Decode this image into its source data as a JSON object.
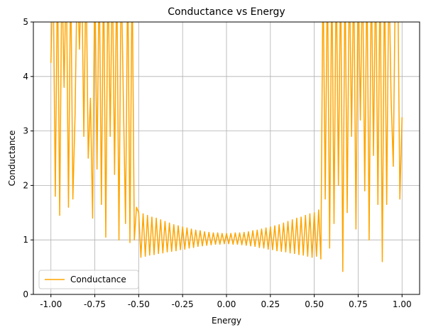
{
  "chart_data": {
    "type": "line",
    "title": "Conductance vs Energy",
    "x_label": "Energy",
    "y_label": "Conductance",
    "x": [
      -1,
      -0.9875,
      -0.975,
      -0.9625,
      -0.95,
      -0.9375,
      -0.925,
      -0.9125,
      -0.9,
      -0.8875,
      -0.875,
      -0.8625,
      -0.85,
      -0.8375,
      -0.825,
      -0.8125,
      -0.8,
      -0.7875,
      -0.775,
      -0.7625,
      -0.75,
      -0.7375,
      -0.725,
      -0.7125,
      -0.7,
      -0.6875,
      -0.675,
      -0.6625,
      -0.65,
      -0.6375,
      -0.625,
      -0.6125,
      -0.6,
      -0.5875,
      -0.575,
      -0.5625,
      -0.55,
      -0.5375,
      -0.525,
      -0.5125,
      -0.5,
      -0.4875,
      -0.475,
      -0.4625,
      -0.45,
      -0.4375,
      -0.425,
      -0.4125,
      -0.4,
      -0.3875,
      -0.375,
      -0.3625,
      -0.35,
      -0.3375,
      -0.325,
      -0.3125,
      -0.3,
      -0.2875,
      -0.275,
      -0.2625,
      -0.25,
      -0.2375,
      -0.225,
      -0.2125,
      -0.2,
      -0.1875,
      -0.175,
      -0.1625,
      -0.15,
      -0.1375,
      -0.125,
      -0.1125,
      -0.1,
      -0.0875,
      -0.075,
      -0.0625,
      -0.05,
      -0.0375,
      -0.025,
      -0.0125,
      0,
      0.0125,
      0.025,
      0.0375,
      0.05,
      0.0625,
      0.075,
      0.0875,
      0.1,
      0.1125,
      0.125,
      0.1375,
      0.15,
      0.1625,
      0.175,
      0.1875,
      0.2,
      0.2125,
      0.225,
      0.2375,
      0.25,
      0.2625,
      0.275,
      0.2875,
      0.3,
      0.3125,
      0.325,
      0.3375,
      0.35,
      0.3625,
      0.375,
      0.3875,
      0.4,
      0.4125,
      0.425,
      0.4375,
      0.45,
      0.4625,
      0.475,
      0.4875,
      0.5,
      0.5125,
      0.525,
      0.5375,
      0.55,
      0.5625,
      0.575,
      0.5875,
      0.6,
      0.6125,
      0.625,
      0.6375,
      0.65,
      0.6625,
      0.675,
      0.6875,
      0.7,
      0.7125,
      0.725,
      0.7375,
      0.75,
      0.7625,
      0.775,
      0.7875,
      0.8,
      0.8125,
      0.825,
      0.8375,
      0.85,
      0.8625,
      0.875,
      0.8875,
      0.9,
      0.9125,
      0.925,
      0.9375,
      0.95,
      0.9625,
      0.975,
      0.9875,
      1
    ],
    "series": [
      {
        "name": "Conductance",
        "color": "#ffa500",
        "values": [
          4.25,
          6,
          1.8,
          6,
          1.45,
          6,
          3.8,
          6,
          1.6,
          6,
          1.75,
          3.3,
          6,
          4.5,
          6,
          2.9,
          6,
          2.5,
          3.6,
          1.4,
          6,
          2.3,
          6,
          1.65,
          6,
          1.05,
          6,
          2.9,
          6,
          2.2,
          6,
          1.0,
          6,
          3.6,
          1.3,
          6,
          0.95,
          6,
          1.0,
          1.6,
          1.5,
          0.68,
          1.48,
          0.7,
          1.45,
          0.72,
          1.42,
          0.73,
          1.4,
          0.75,
          1.37,
          0.76,
          1.34,
          0.78,
          1.31,
          0.79,
          1.28,
          0.8,
          1.26,
          0.82,
          1.24,
          0.83,
          1.22,
          0.85,
          1.2,
          0.86,
          1.18,
          0.88,
          1.17,
          0.89,
          1.15,
          0.9,
          1.14,
          0.91,
          1.13,
          0.92,
          1.13,
          0.92,
          1.12,
          0.93,
          1.12,
          0.93,
          1.12,
          0.92,
          1.13,
          0.92,
          1.13,
          0.91,
          1.14,
          0.9,
          1.15,
          0.89,
          1.17,
          0.88,
          1.18,
          0.86,
          1.2,
          0.85,
          1.22,
          0.83,
          1.24,
          0.82,
          1.26,
          0.8,
          1.28,
          0.79,
          1.31,
          0.78,
          1.34,
          0.76,
          1.37,
          0.75,
          1.4,
          0.73,
          1.42,
          0.72,
          1.45,
          0.7,
          1.48,
          0.68,
          1.5,
          0.7,
          1.55,
          0.65,
          6,
          1.75,
          6,
          0.85,
          6,
          1.3,
          6,
          2.0,
          6,
          0.42,
          6,
          1.5,
          6,
          2.9,
          6,
          1.2,
          6,
          3.2,
          6,
          1.9,
          6,
          1.0,
          6,
          2.55,
          6,
          1.65,
          6,
          0.6,
          6,
          1.65,
          6,
          3.6,
          2.35,
          6,
          6,
          1.75,
          3.25
        ]
      }
    ],
    "xlim": [
      -1.1,
      1.1
    ],
    "ylim": [
      0,
      5
    ],
    "xticks": [
      {
        "value": -1,
        "label": "-1.00"
      },
      {
        "value": -0.75,
        "label": "-0.75"
      },
      {
        "value": -0.5,
        "label": "-0.50"
      },
      {
        "value": -0.25,
        "label": "-0.25"
      },
      {
        "value": 0,
        "label": "0.00"
      },
      {
        "value": 0.25,
        "label": "0.25"
      },
      {
        "value": 0.5,
        "label": "0.50"
      },
      {
        "value": 0.75,
        "label": "0.75"
      },
      {
        "value": 1,
        "label": "1.00"
      }
    ],
    "yticks": [
      0,
      1,
      2,
      3,
      4,
      5
    ],
    "grid": true,
    "legend": "lower left"
  }
}
